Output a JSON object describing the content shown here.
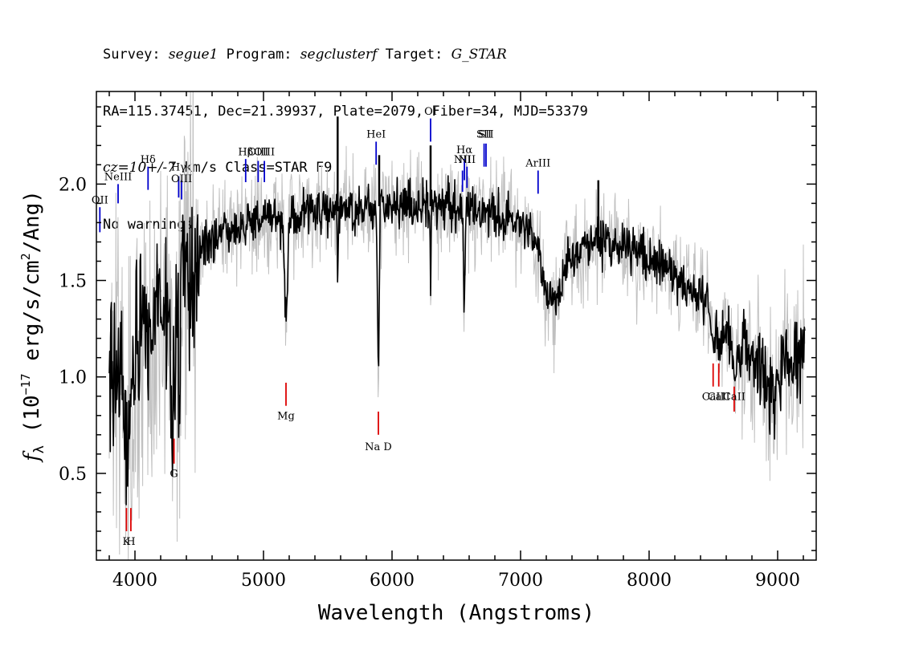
{
  "header": {
    "line1": {
      "survey_label": "Survey:",
      "survey": "segue1",
      "program_label": "Program:",
      "program": "segclusterf",
      "target_label": "Target:",
      "target": "G_STAR"
    },
    "line2": "RA=115.37451, Dec=21.39937, Plate=2079, Fiber=34, MJD=53379",
    "line3": {
      "cz": "cz=10+/-7",
      "rest": " km/s Class=STAR F9"
    },
    "line4": "No warnings."
  },
  "chart_data": {
    "type": "line",
    "xlabel": "Wavelength (Angstroms)",
    "ylabel": "f",
    "ylabel_sub": "λ",
    "ylabel_unit": " (10",
    "ylabel_exp": "−17",
    "ylabel_unit2": " erg/s/cm",
    "ylabel_exp2": "2",
    "ylabel_unit3": "/Ang)",
    "xlim": [
      3700,
      9300
    ],
    "ylim": [
      0.05,
      2.48
    ],
    "xticks": [
      4000,
      5000,
      6000,
      7000,
      8000,
      9000
    ],
    "yticks": [
      0.5,
      1.0,
      1.5,
      2.0
    ],
    "xtick_labels": [
      "4000",
      "5000",
      "6000",
      "7000",
      "8000",
      "9000"
    ],
    "ytick_labels": [
      "0.5",
      "1.0",
      "1.5",
      "2.0"
    ],
    "continuum": [
      [
        3800,
        1.05
      ],
      [
        3900,
        1.05
      ],
      [
        4000,
        1.15
      ],
      [
        4100,
        1.3
      ],
      [
        4200,
        1.35
      ],
      [
        4300,
        1.4
      ],
      [
        4400,
        1.5
      ],
      [
        4500,
        1.65
      ],
      [
        4600,
        1.72
      ],
      [
        4800,
        1.78
      ],
      [
        5000,
        1.82
      ],
      [
        5200,
        1.83
      ],
      [
        5400,
        1.85
      ],
      [
        5600,
        1.86
      ],
      [
        5800,
        1.88
      ],
      [
        6000,
        1.89
      ],
      [
        6200,
        1.89
      ],
      [
        6400,
        1.88
      ],
      [
        6600,
        1.87
      ],
      [
        6800,
        1.86
      ],
      [
        7000,
        1.8
      ],
      [
        7100,
        1.72
      ],
      [
        7200,
        1.5
      ],
      [
        7300,
        1.55
      ],
      [
        7400,
        1.62
      ],
      [
        7600,
        1.7
      ],
      [
        7800,
        1.68
      ],
      [
        8000,
        1.62
      ],
      [
        8200,
        1.52
      ],
      [
        8400,
        1.4
      ],
      [
        8600,
        1.22
      ],
      [
        8800,
        1.08
      ],
      [
        9000,
        1.05
      ],
      [
        9100,
        1.1
      ],
      [
        9200,
        1.12
      ]
    ],
    "features": [
      [
        3968,
        0.25,
        30
      ],
      [
        3934,
        0.3,
        30
      ],
      [
        4101,
        0.4,
        14
      ],
      [
        4300,
        0.6,
        22
      ],
      [
        4340,
        0.5,
        14
      ],
      [
        5175,
        0.55,
        16
      ],
      [
        5577,
        0.45,
        4
      ],
      [
        5893,
        0.8,
        10
      ],
      [
        6300,
        0.4,
        5
      ],
      [
        6563,
        0.5,
        9
      ],
      [
        7250,
        0.15,
        60
      ],
      [
        8500,
        0.15,
        15
      ],
      [
        8545,
        0.15,
        15
      ],
      [
        8665,
        0.2,
        15
      ],
      [
        8950,
        0.2,
        40
      ]
    ],
    "spikes": [
      [
        5577,
        2.35
      ],
      [
        5900,
        2.15
      ],
      [
        6300,
        2.2
      ],
      [
        7605,
        2.02
      ],
      [
        6100,
        1.98
      ]
    ],
    "emission_lines": [
      {
        "label": "OII",
        "x": 3727,
        "y0": 1.75,
        "y1": 1.88,
        "ly": 1.9
      },
      {
        "label": "NeIII",
        "x": 3869,
        "y0": 1.9,
        "y1": 2.0,
        "ly": 2.02
      },
      {
        "label": "Hδ",
        "x": 4102,
        "y0": 1.97,
        "y1": 2.09,
        "ly": 2.11
      },
      {
        "label": "Hγ",
        "x": 4340,
        "y0": 1.93,
        "y1": 2.04,
        "ly": 2.07
      },
      {
        "label": "OIII",
        "x": 4363,
        "y0": 1.92,
        "y1": 2.02,
        "ly": 2.01
      },
      {
        "label": "Hβ",
        "x": 4861,
        "y0": 2.01,
        "y1": 2.13,
        "ly": 2.15
      },
      {
        "label": "OIII",
        "x": 4959,
        "y0": 2.01,
        "y1": 2.12,
        "ly": 2.15
      },
      {
        "label": "OIII",
        "x": 5007,
        "y0": 2.01,
        "y1": 2.12,
        "ly": 2.15
      },
      {
        "label": "HeI",
        "x": 5876,
        "y0": 2.1,
        "y1": 2.22,
        "ly": 2.24
      },
      {
        "label": "OI",
        "x": 6300,
        "y0": 2.22,
        "y1": 2.34,
        "ly": 2.36
      },
      {
        "label": "NII",
        "x": 6548,
        "y0": 1.96,
        "y1": 2.07,
        "ly": 2.11
      },
      {
        "label": "Hα",
        "x": 6563,
        "y0": 2.02,
        "y1": 2.13,
        "ly": 2.16
      },
      {
        "label": "NII",
        "x": 6583,
        "y0": 1.98,
        "y1": 2.09,
        "ly": 2.11
      },
      {
        "label": "SII",
        "x": 6716,
        "y0": 2.09,
        "y1": 2.21,
        "ly": 2.24
      },
      {
        "label": "SII",
        "x": 6731,
        "y0": 2.09,
        "y1": 2.21,
        "ly": 2.24
      },
      {
        "label": "ArIII",
        "x": 7136,
        "y0": 1.95,
        "y1": 2.07,
        "ly": 2.09
      }
    ],
    "absorption_lines": [
      {
        "label": "K",
        "x": 3934,
        "y0": 0.2,
        "y1": 0.32,
        "ly": 0.13
      },
      {
        "label": "H",
        "x": 3968,
        "y0": 0.2,
        "y1": 0.32,
        "ly": 0.13
      },
      {
        "label": "G",
        "x": 4304,
        "y0": 0.55,
        "y1": 0.68,
        "ly": 0.48
      },
      {
        "label": "Mg",
        "x": 5175,
        "y0": 0.85,
        "y1": 0.97,
        "ly": 0.78
      },
      {
        "label": "Na D",
        "x": 5894,
        "y0": 0.7,
        "y1": 0.82,
        "ly": 0.62
      },
      {
        "label": "CaII",
        "x": 8498,
        "y0": 0.95,
        "y1": 1.07,
        "ly": 0.88
      },
      {
        "label": "CaII",
        "x": 8542,
        "y0": 0.95,
        "y1": 1.07,
        "ly": 0.88
      },
      {
        "label": "CaII",
        "x": 8662,
        "y0": 0.82,
        "y1": 0.95,
        "ly": 0.88
      }
    ],
    "colors": {
      "flux": "#000000",
      "error": "#c0c0c0",
      "emission": "#0000cc",
      "absorption": "#dd0000",
      "axes": "#000000"
    }
  }
}
